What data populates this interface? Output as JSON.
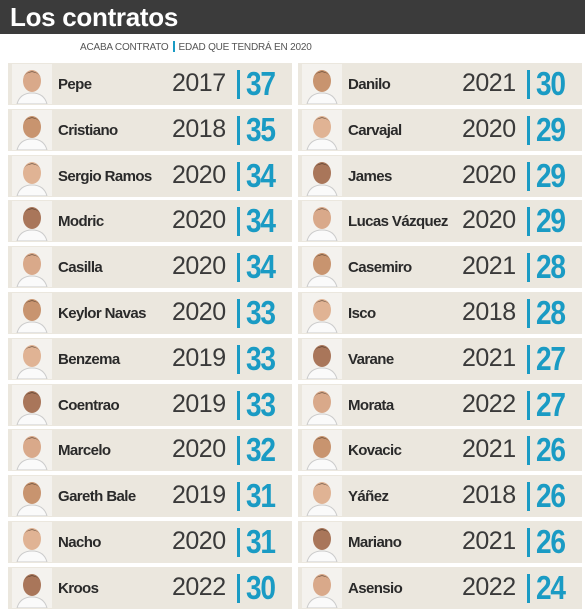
{
  "header": {
    "title": "Los contratos"
  },
  "legend": {
    "contract_end": "ACABA CONTRATO",
    "age": "EDAD QUE TENDRÁ EN 2020"
  },
  "columns": [
    {
      "rows": [
        {
          "name": "Pepe",
          "year": 2017,
          "age": 37
        },
        {
          "name": "Cristiano",
          "year": 2018,
          "age": 35
        },
        {
          "name": "Sergio Ramos",
          "year": 2020,
          "age": 34
        },
        {
          "name": "Modric",
          "year": 2020,
          "age": 34
        },
        {
          "name": "Casilla",
          "year": 2020,
          "age": 34
        },
        {
          "name": "Keylor Navas",
          "year": 2020,
          "age": 33
        },
        {
          "name": "Benzema",
          "year": 2019,
          "age": 33
        },
        {
          "name": "Coentrao",
          "year": 2019,
          "age": 33
        },
        {
          "name": "Marcelo",
          "year": 2020,
          "age": 32
        },
        {
          "name": "Gareth Bale",
          "year": 2019,
          "age": 31
        },
        {
          "name": "Nacho",
          "year": 2020,
          "age": 31
        },
        {
          "name": "Kroos",
          "year": 2022,
          "age": 30
        }
      ]
    },
    {
      "rows": [
        {
          "name": "Danilo",
          "year": 2021,
          "age": 30
        },
        {
          "name": "Carvajal",
          "year": 2020,
          "age": 29
        },
        {
          "name": "James",
          "year": 2020,
          "age": 29
        },
        {
          "name": "Lucas Vázquez",
          "year": 2020,
          "age": 29
        },
        {
          "name": "Casemiro",
          "year": 2021,
          "age": 28
        },
        {
          "name": "Isco",
          "year": 2018,
          "age": 28
        },
        {
          "name": "Varane",
          "year": 2021,
          "age": 27
        },
        {
          "name": "Morata",
          "year": 2022,
          "age": 27
        },
        {
          "name": "Kovacic",
          "year": 2021,
          "age": 26
        },
        {
          "name": "Yáñez",
          "year": 2018,
          "age": 26
        },
        {
          "name": "Mariano",
          "year": 2021,
          "age": 26
        },
        {
          "name": "Asensio",
          "year": 2022,
          "age": 24
        }
      ]
    }
  ]
}
